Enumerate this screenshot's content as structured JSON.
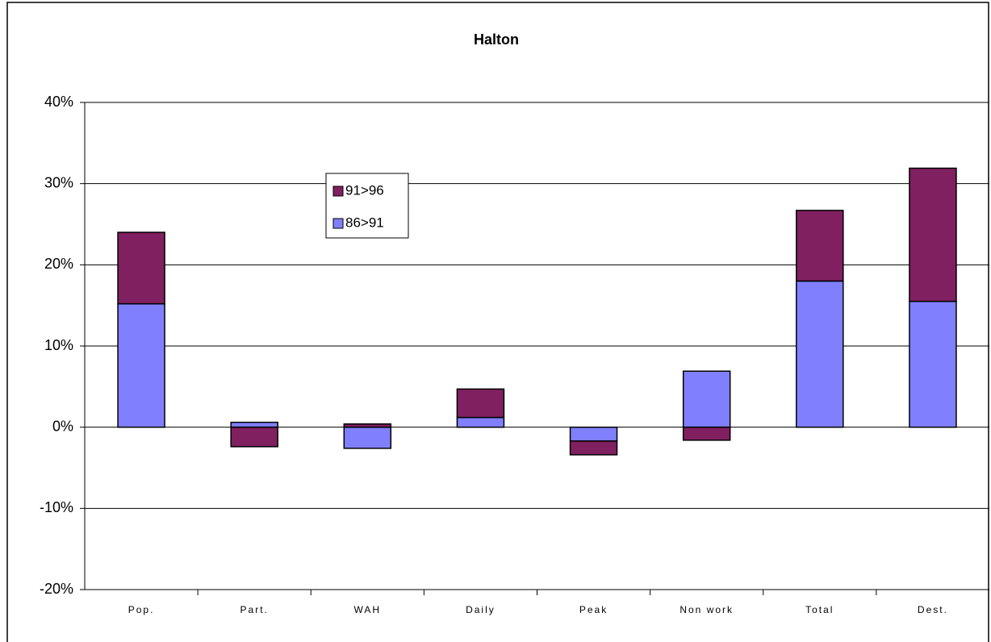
{
  "chart_data": {
    "type": "stacked-bar",
    "title": "Halton",
    "categories": [
      "Pop.",
      "Part.",
      "WAH",
      "Daily",
      "Peak",
      "Non work",
      "Total",
      "Dest."
    ],
    "series": [
      {
        "name": "86>91",
        "color": "#8080ff",
        "values": [
          15.2,
          0.6,
          -2.6,
          1.2,
          -1.7,
          6.9,
          18.0,
          15.5
        ]
      },
      {
        "name": "91>96",
        "color": "#802060",
        "values": [
          8.8,
          -2.4,
          0.4,
          3.5,
          -1.7,
          -1.6,
          8.7,
          16.4
        ]
      }
    ],
    "ylim": [
      -20,
      40
    ],
    "yticks": [
      {
        "value": -20,
        "label": "-20%"
      },
      {
        "value": -10,
        "label": "-10%"
      },
      {
        "value": 0,
        "label": "0%"
      },
      {
        "value": 10,
        "label": "10%"
      },
      {
        "value": 20,
        "label": "20%"
      },
      {
        "value": 30,
        "label": "30%"
      },
      {
        "value": 40,
        "label": "40%"
      }
    ],
    "grid": true
  }
}
